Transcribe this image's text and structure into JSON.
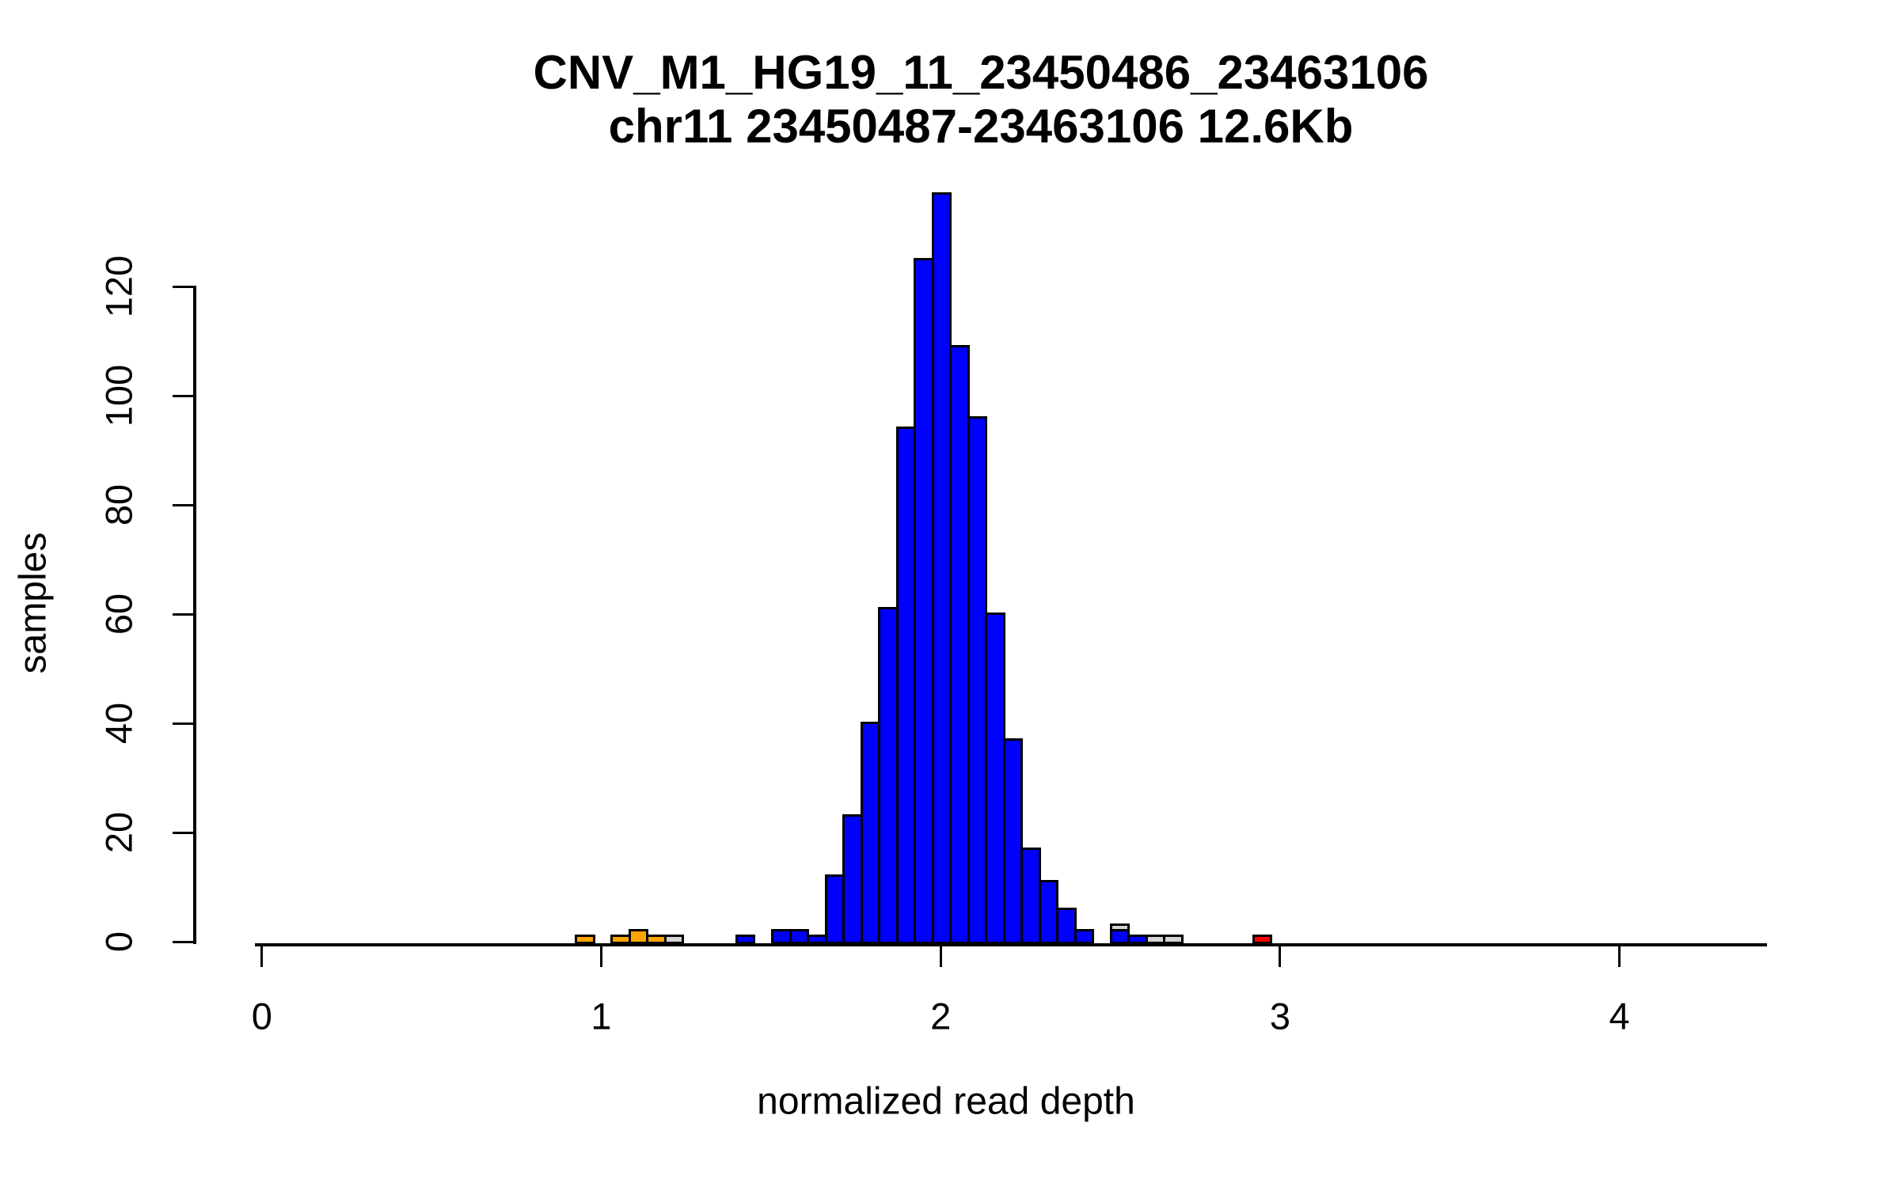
{
  "title": {
    "line1": "CNV_M1_HG19_11_23450486_23463106",
    "line2": "chr11 23450487-23463106 12.6Kb"
  },
  "colors": {
    "blue": "#0000FF",
    "orange": "#FFA500",
    "red": "#FF0000",
    "gray": "#D3D3D3",
    "axis": "#000000"
  },
  "chart_data": {
    "type": "bar",
    "subtype": "histogram",
    "title": "CNV_M1_HG19_11_23450486_23463106",
    "subtitle": "chr11 23450487-23463106 12.6Kb",
    "xlabel": "normalized read depth",
    "ylabel": "samples",
    "x_ticks": [
      0,
      1,
      2,
      3,
      4
    ],
    "y_ticks": [
      0,
      20,
      40,
      60,
      80,
      100,
      120
    ],
    "xlim": [
      -0.02,
      4.44
    ],
    "ylim": [
      0,
      137
    ],
    "grid": false,
    "legend": "none",
    "bin_width": 0.0525,
    "bars": [
      {
        "x": 0.9525,
        "h": 1,
        "color": "orange"
      },
      {
        "x": 1.0575,
        "h": 1,
        "color": "orange"
      },
      {
        "x": 1.11,
        "h": 2,
        "color": "orange"
      },
      {
        "x": 1.1625,
        "h": 1,
        "color": "orange"
      },
      {
        "x": 1.215,
        "h": 1,
        "color": "gray"
      },
      {
        "x": 1.425,
        "h": 1,
        "color": "blue"
      },
      {
        "x": 1.53,
        "h": 2,
        "color": "blue"
      },
      {
        "x": 1.5825,
        "h": 2,
        "color": "blue"
      },
      {
        "x": 1.635,
        "h": 1,
        "color": "blue"
      },
      {
        "x": 1.6875,
        "h": 12,
        "color": "blue"
      },
      {
        "x": 1.74,
        "h": 23,
        "color": "blue"
      },
      {
        "x": 1.7925,
        "h": 40,
        "color": "blue"
      },
      {
        "x": 1.845,
        "h": 61,
        "color": "blue"
      },
      {
        "x": 1.8975,
        "h": 94,
        "color": "blue"
      },
      {
        "x": 1.95,
        "h": 125,
        "color": "blue"
      },
      {
        "x": 2.0025,
        "h": 137,
        "color": "blue"
      },
      {
        "x": 2.055,
        "h": 109,
        "color": "blue"
      },
      {
        "x": 2.1075,
        "h": 96,
        "color": "blue"
      },
      {
        "x": 2.16,
        "h": 60,
        "color": "blue"
      },
      {
        "x": 2.2125,
        "h": 37,
        "color": "blue"
      },
      {
        "x": 2.265,
        "h": 17,
        "color": "blue"
      },
      {
        "x": 2.3175,
        "h": 11,
        "color": "blue"
      },
      {
        "x": 2.37,
        "h": 6,
        "color": "blue"
      },
      {
        "x": 2.4225,
        "h": 2,
        "color": "blue"
      },
      {
        "x": 2.5275,
        "h": 3,
        "color": "gray"
      },
      {
        "x": 2.5275,
        "h": 2,
        "color": "blue"
      },
      {
        "x": 2.58,
        "h": 1,
        "color": "blue"
      },
      {
        "x": 2.6325,
        "h": 1,
        "color": "gray"
      },
      {
        "x": 2.685,
        "h": 1,
        "color": "gray"
      },
      {
        "x": 2.9475,
        "h": 1,
        "color": "red"
      }
    ]
  }
}
